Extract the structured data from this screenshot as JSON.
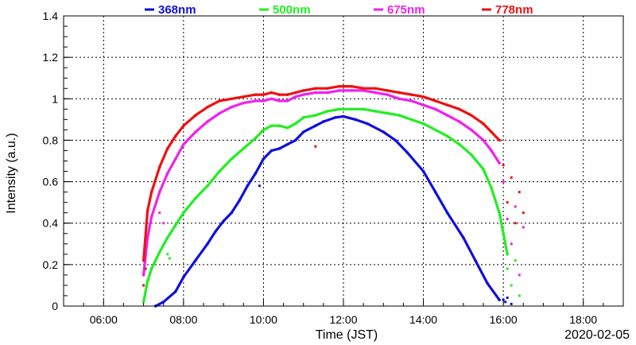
{
  "chart_data": {
    "type": "scatter",
    "title": "",
    "date_label": "2020-02-05",
    "xlabel": "Time (JST)",
    "ylabel": "Intensity (a.u.)",
    "x_unit": "hour (JST)",
    "xlim": [
      5.0,
      19.0
    ],
    "ylim": [
      0,
      1.4
    ],
    "x_ticks": [
      {
        "value": 6,
        "label": "06:00"
      },
      {
        "value": 8,
        "label": "08:00"
      },
      {
        "value": 10,
        "label": "10:00"
      },
      {
        "value": 12,
        "label": "12:00"
      },
      {
        "value": 14,
        "label": "14:00"
      },
      {
        "value": 16,
        "label": "16:00"
      },
      {
        "value": 18,
        "label": "18:00"
      }
    ],
    "y_ticks": [
      {
        "value": 0,
        "label": "0"
      },
      {
        "value": 0.2,
        "label": "0.2"
      },
      {
        "value": 0.4,
        "label": "0.4"
      },
      {
        "value": 0.6,
        "label": "0.6"
      },
      {
        "value": 0.8,
        "label": "0.8"
      },
      {
        "value": 1.0,
        "label": "1"
      },
      {
        "value": 1.2,
        "label": "1.2"
      },
      {
        "value": 1.4,
        "label": "1.4"
      }
    ],
    "grid": true,
    "legend_position": "top",
    "series": [
      {
        "name": "368nm",
        "color": "#1010dd",
        "x": [
          7.3,
          7.5,
          7.8,
          8.0,
          8.3,
          8.6,
          8.8,
          9.0,
          9.2,
          9.4,
          9.6,
          9.8,
          10.0,
          10.2,
          10.4,
          10.6,
          10.8,
          11.0,
          11.3,
          11.5,
          11.8,
          12.0,
          12.3,
          12.6,
          13.0,
          13.3,
          13.6,
          14.0,
          14.3,
          14.6,
          15.0,
          15.3,
          15.6,
          15.9
        ],
        "y": [
          0.0,
          0.02,
          0.07,
          0.14,
          0.22,
          0.3,
          0.36,
          0.41,
          0.45,
          0.51,
          0.58,
          0.64,
          0.71,
          0.75,
          0.76,
          0.78,
          0.8,
          0.84,
          0.87,
          0.89,
          0.91,
          0.915,
          0.9,
          0.88,
          0.84,
          0.8,
          0.74,
          0.65,
          0.55,
          0.45,
          0.33,
          0.22,
          0.11,
          0.03
        ],
        "outliers_x": [
          9.9,
          16.0,
          16.05,
          16.1,
          16.2
        ],
        "outliers_y": [
          0.58,
          0.03,
          0.02,
          0.04,
          0.01
        ]
      },
      {
        "name": "500nm",
        "color": "#22ee22",
        "x": [
          7.0,
          7.1,
          7.2,
          7.4,
          7.6,
          7.8,
          8.0,
          8.3,
          8.6,
          8.9,
          9.2,
          9.5,
          9.8,
          10.0,
          10.2,
          10.4,
          10.6,
          10.8,
          11.0,
          11.3,
          11.6,
          11.9,
          12.2,
          12.5,
          12.8,
          13.1,
          13.4,
          13.7,
          14.0,
          14.3,
          14.6,
          14.9,
          15.2,
          15.5,
          15.7,
          15.9,
          16.1
        ],
        "y": [
          0.02,
          0.12,
          0.18,
          0.26,
          0.33,
          0.39,
          0.45,
          0.52,
          0.58,
          0.65,
          0.71,
          0.76,
          0.81,
          0.85,
          0.87,
          0.87,
          0.86,
          0.88,
          0.91,
          0.92,
          0.94,
          0.95,
          0.95,
          0.95,
          0.94,
          0.93,
          0.92,
          0.9,
          0.88,
          0.85,
          0.82,
          0.78,
          0.73,
          0.66,
          0.57,
          0.45,
          0.25
        ],
        "outliers_x": [
          7.6,
          7.65,
          16.0,
          16.1,
          16.2,
          16.3,
          16.4
        ],
        "outliers_y": [
          0.25,
          0.23,
          0.35,
          0.18,
          0.1,
          0.22,
          0.05
        ]
      },
      {
        "name": "675nm",
        "color": "#ee22ee",
        "x": [
          7.0,
          7.1,
          7.2,
          7.4,
          7.6,
          7.8,
          8.0,
          8.3,
          8.6,
          8.9,
          9.2,
          9.5,
          9.8,
          10.0,
          10.2,
          10.4,
          10.6,
          10.8,
          11.0,
          11.3,
          11.6,
          11.9,
          12.2,
          12.5,
          12.8,
          13.1,
          13.4,
          13.7,
          14.0,
          14.3,
          14.6,
          14.9,
          15.2,
          15.5,
          15.7,
          15.9
        ],
        "y": [
          0.15,
          0.33,
          0.43,
          0.55,
          0.64,
          0.71,
          0.78,
          0.84,
          0.89,
          0.93,
          0.96,
          0.98,
          0.99,
          0.99,
          1.0,
          0.99,
          0.99,
          1.01,
          1.02,
          1.03,
          1.03,
          1.04,
          1.04,
          1.04,
          1.03,
          1.02,
          1.0,
          0.99,
          0.97,
          0.95,
          0.92,
          0.89,
          0.85,
          0.8,
          0.75,
          0.69
        ],
        "outliers_x": [
          7.4,
          7.5,
          16.0,
          16.1,
          16.2,
          16.3,
          16.4,
          16.5
        ],
        "outliers_y": [
          0.45,
          0.4,
          0.6,
          0.42,
          0.3,
          0.48,
          0.15,
          0.38
        ]
      },
      {
        "name": "778nm",
        "color": "#ee1111",
        "x": [
          7.0,
          7.1,
          7.2,
          7.4,
          7.6,
          7.8,
          8.0,
          8.3,
          8.6,
          8.9,
          9.2,
          9.5,
          9.8,
          10.0,
          10.2,
          10.4,
          10.6,
          10.8,
          11.0,
          11.3,
          11.6,
          11.9,
          12.2,
          12.5,
          12.8,
          13.1,
          13.4,
          13.7,
          14.0,
          14.3,
          14.6,
          14.9,
          15.2,
          15.5,
          15.7,
          15.9
        ],
        "y": [
          0.22,
          0.46,
          0.55,
          0.67,
          0.76,
          0.82,
          0.87,
          0.92,
          0.96,
          0.99,
          1.0,
          1.01,
          1.02,
          1.02,
          1.03,
          1.02,
          1.02,
          1.03,
          1.04,
          1.05,
          1.05,
          1.06,
          1.06,
          1.05,
          1.05,
          1.04,
          1.03,
          1.02,
          1.01,
          0.99,
          0.97,
          0.95,
          0.92,
          0.88,
          0.84,
          0.8
        ],
        "outliers_x": [
          7.0,
          7.05,
          11.3,
          16.0,
          16.1,
          16.2,
          16.3,
          16.4,
          16.5
        ],
        "outliers_y": [
          0.1,
          0.18,
          0.77,
          0.68,
          0.5,
          0.62,
          0.4,
          0.55,
          0.45
        ]
      }
    ]
  }
}
